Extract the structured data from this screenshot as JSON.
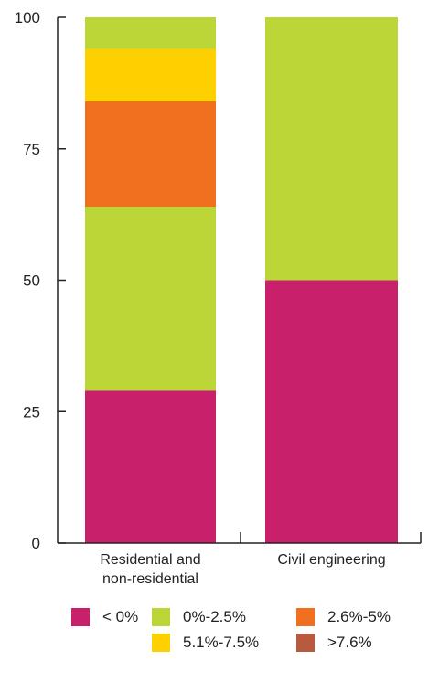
{
  "chart_data": {
    "type": "bar",
    "stacked": true,
    "categories": [
      "Residential and\nnon-residential",
      "Civil engineering"
    ],
    "category_lines": [
      [
        "Residential and",
        "non-residential"
      ],
      [
        "Civil engineering"
      ]
    ],
    "series": [
      {
        "name": "< 0%",
        "color": "#c8206a",
        "values": [
          29,
          50
        ]
      },
      {
        "name": "0%-2.5%",
        "color": "#bcd638",
        "values": [
          35,
          50
        ]
      },
      {
        "name": "2.6%-5%",
        "color": "#f07020",
        "values": [
          20,
          0
        ]
      },
      {
        "name": "5.1%-7.5%",
        "color": "#ffd000",
        "values": [
          10,
          0
        ]
      },
      {
        "name": ">7.6%",
        "color": "#b85a40",
        "values": [
          0,
          0
        ]
      },
      {
        "name": "0%-2.5%",
        "color": "#bcd638",
        "values": [
          6,
          0
        ]
      }
    ],
    "legend": [
      {
        "label": "< 0%",
        "color": "#c8206a"
      },
      {
        "label": "0%-2.5%",
        "color": "#bcd638"
      },
      {
        "label": "2.6%-5%",
        "color": "#f07020"
      },
      {
        "label": "5.1%-7.5%",
        "color": "#ffd000"
      },
      {
        "label": ">7.6%",
        "color": "#b85a40"
      }
    ],
    "ylim": [
      0,
      100
    ],
    "yticks": [
      0,
      25,
      50,
      75,
      100
    ],
    "grid": false,
    "legend_position": "bottom",
    "xlabel": "",
    "ylabel": ""
  }
}
